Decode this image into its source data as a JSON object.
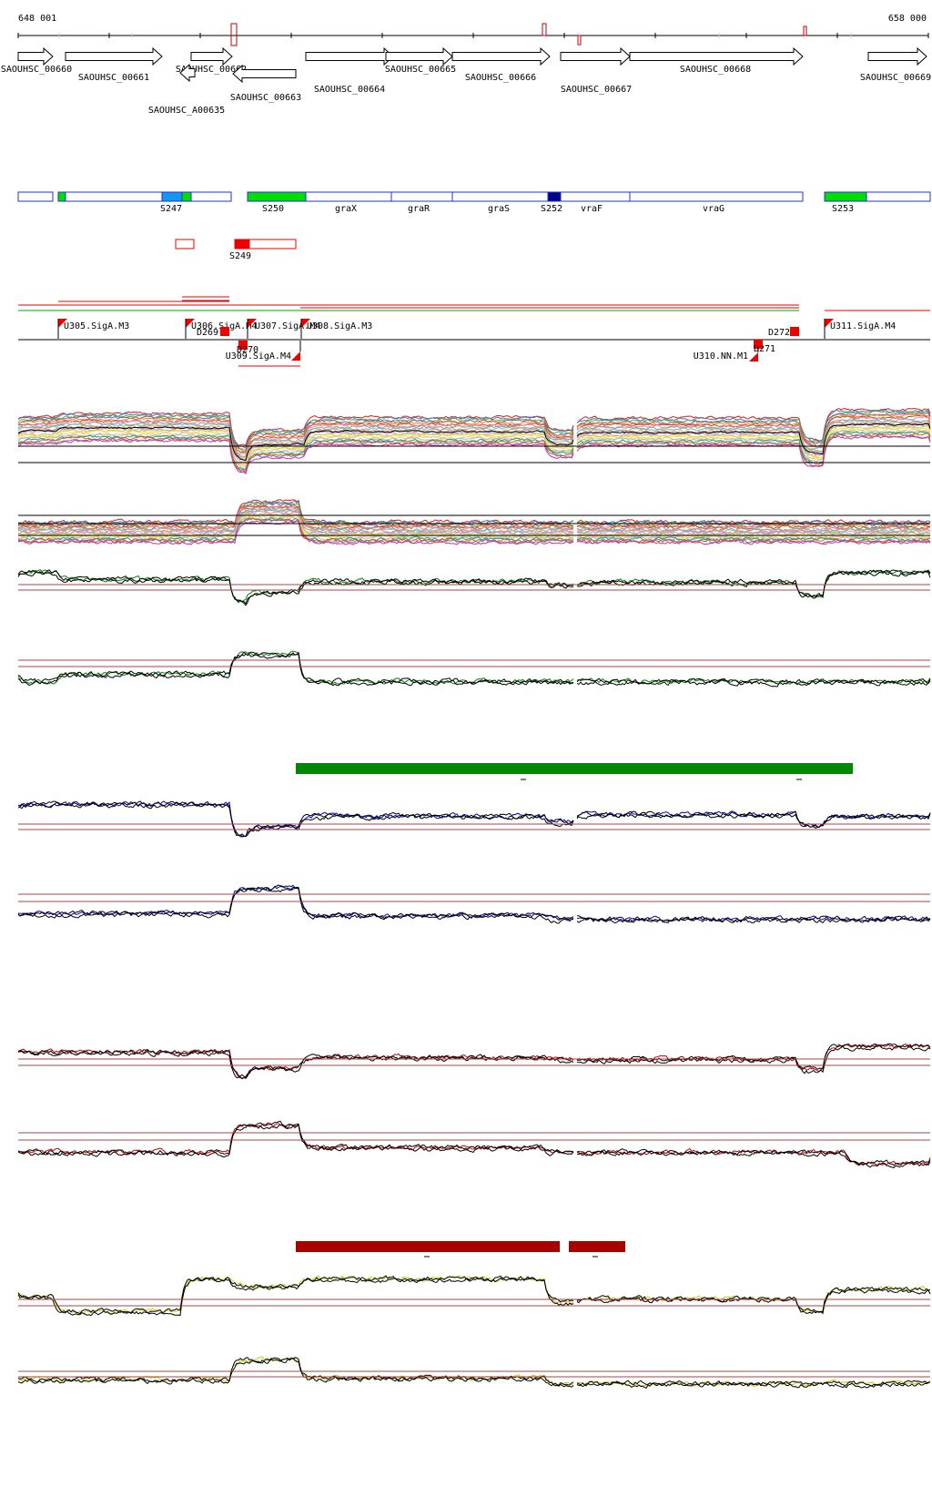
{
  "ruler": {
    "start_label": "648 001",
    "end_label": "658 000"
  },
  "genes": [
    {
      "label": "SAOUHSC_00660",
      "strand": "+"
    },
    {
      "label": "SAOUHSC_00661",
      "strand": "+"
    },
    {
      "label": "SAOUHSC_00662",
      "strand": "+"
    },
    {
      "label": "SAOUHSC_A00635",
      "strand": "-"
    },
    {
      "label": "SAOUHSC_00663",
      "strand": "-"
    },
    {
      "label": "SAOUHSC_00664",
      "strand": "+"
    },
    {
      "label": "SAOUHSC_00665",
      "strand": "+"
    },
    {
      "label": "SAOUHSC_00666",
      "strand": "+"
    },
    {
      "label": "SAOUHSC_00667",
      "strand": "+"
    },
    {
      "label": "SAOUHSC_00668",
      "strand": "+"
    },
    {
      "label": "SAOUHSC_00669",
      "strand": "+"
    }
  ],
  "segments": {
    "labels": [
      "S247",
      "S250",
      "graX",
      "graR",
      "graS",
      "S252",
      "vraF",
      "vraG",
      "S253"
    ],
    "antisense_label": "S249",
    "colors": {
      "outline": "#2233cc",
      "green": "#00dd00",
      "light_blue": "#1199ee",
      "navy": "#000088",
      "red": "#ee0000"
    }
  },
  "promoters": [
    {
      "label": "U305.SigA.M3"
    },
    {
      "label": "U306.SigA.M4"
    },
    {
      "label": "U307.SigA.M4"
    },
    {
      "label": "U308.SigA.M3"
    },
    {
      "label": "U309.SigA.M4"
    },
    {
      "label": "U310.NN.M1"
    },
    {
      "label": "U311.SigA.M4"
    }
  ],
  "terminators": [
    {
      "label": "D269"
    },
    {
      "label": "D270"
    },
    {
      "label": "D271"
    },
    {
      "label": "D272"
    }
  ],
  "tracks": {
    "series_colors": [
      "#000000",
      "#008800",
      "#0000cc",
      "#cc0000",
      "#cccc00",
      "#990000"
    ]
  }
}
